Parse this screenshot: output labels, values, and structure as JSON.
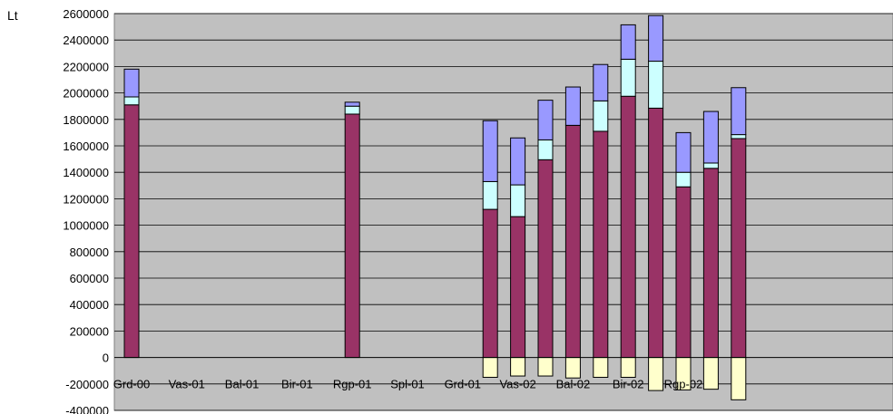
{
  "chart_data": {
    "type": "bar",
    "stacked": true,
    "title": "",
    "unit_label": "Lt",
    "ylim": [
      -400000,
      2600000
    ],
    "ytick_step": 200000,
    "yticks": [
      "2600000",
      "2400000",
      "2200000",
      "2000000",
      "1800000",
      "1600000",
      "1400000",
      "1200000",
      "1000000",
      "800000",
      "600000",
      "400000",
      "200000",
      "0",
      "-200000",
      "-400000"
    ],
    "categories": [
      "Grd-00",
      "Vas-01",
      "Bal-01",
      "Bir-01",
      "Rgp-01",
      "Spl-01",
      "Grd-01",
      "Vas-02",
      "Bal-02",
      "Bir-02",
      "Rgp-02"
    ],
    "slots": [
      {
        "label": "Grd-00",
        "pos": 0
      },
      {
        "pos": 1
      },
      {
        "pos": 2
      },
      {
        "pos": 3
      },
      {
        "pos": 4
      },
      {
        "pos": 5
      },
      {
        "pos": 6
      },
      {
        "pos": 7
      },
      {
        "pos": 8,
        "label": "Bir-01"
      },
      {
        "pos": 9
      },
      {
        "pos": 10
      },
      {
        "pos": 11
      },
      {
        "pos": 12
      },
      {
        "pos": 13
      },
      {
        "pos": 14
      },
      {
        "pos": 15
      },
      {
        "pos": 16
      },
      {
        "pos": 17
      }
    ],
    "grid": "horizontal",
    "legend": "none",
    "colors": {
      "plot_bg": "#c0c0c0",
      "series1": "#993366",
      "series2": "#ccffff",
      "series3": "#9999ff",
      "series4": "#ffffcc"
    },
    "bars": [
      {
        "index": 0,
        "s1": 1910000,
        "s2": 60000,
        "s3": 210000,
        "neg": 0
      },
      {
        "index": 8,
        "s1": 1840000,
        "s2": 60000,
        "s3": 30000,
        "neg": 0
      },
      {
        "index": 13,
        "s1": 1120000,
        "s2": 210000,
        "s3": 460000,
        "neg": -150000
      },
      {
        "index": 14,
        "s1": 1065000,
        "s2": 240000,
        "s3": 355000,
        "neg": -140000
      },
      {
        "index": 15,
        "s1": 1495000,
        "s2": 150000,
        "s3": 300000,
        "neg": -140000
      },
      {
        "index": 16,
        "s1": 1755000,
        "s2": 0,
        "s3": 290000,
        "neg": -155000
      },
      {
        "index": 17,
        "s1": 1710000,
        "s2": 230000,
        "s3": 275000,
        "neg": -150000
      },
      {
        "index": 18,
        "s1": 1975000,
        "s2": 280000,
        "s3": 260000,
        "neg": -150000
      },
      {
        "index": 19,
        "s1": 1885000,
        "s2": 355000,
        "s3": 345000,
        "neg": -250000
      },
      {
        "index": 20,
        "s1": 1290000,
        "s2": 110000,
        "s3": 300000,
        "neg": -245000
      },
      {
        "index": 21,
        "s1": 1430000,
        "s2": 40000,
        "s3": 390000,
        "neg": -240000
      },
      {
        "index": 22,
        "s1": 1655000,
        "s2": 30000,
        "s3": 355000,
        "neg": -320000
      }
    ]
  }
}
